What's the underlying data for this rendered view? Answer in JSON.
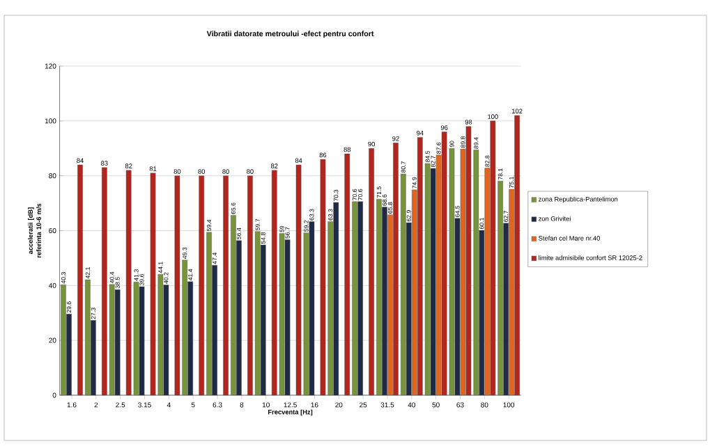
{
  "chart_data": {
    "type": "bar",
    "title": "Vibratii datorate metroului -efect  pentru confort",
    "xlabel": "Frecventa [Hz]",
    "ylabel": "acceleratii [dB] referinta 10-6 m/s",
    "categories": [
      "1.6",
      "2",
      "2.5",
      "3.15",
      "4",
      "5",
      "6.3",
      "8",
      "10",
      "12.5",
      "16",
      "20",
      "25",
      "31.5",
      "40",
      "50",
      "63",
      "80",
      "100"
    ],
    "series": [
      {
        "name": "zona Republica-Pantelimon",
        "color": "#77933c",
        "values": [
          40.3,
          42.1,
          40.4,
          41.3,
          44.1,
          49.3,
          59.4,
          65.6,
          59.7,
          59,
          59.2,
          63.3,
          70.6,
          71.5,
          80.7,
          84.5,
          90,
          89.4,
          78.1
        ]
      },
      {
        "name": "zon Grivitei",
        "color": "#1f2a44",
        "values": [
          29.6,
          27.3,
          38.5,
          39.6,
          40.2,
          41.4,
          47.4,
          56.4,
          54.8,
          56.7,
          63.3,
          70.3,
          70.6,
          68.6,
          62.9,
          82.7,
          64.5,
          60.1,
          62.7
        ]
      },
      {
        "name": "Stefan cel Mare nr.40",
        "color": "#e0661f",
        "values": [
          null,
          null,
          null,
          null,
          null,
          null,
          null,
          null,
          null,
          null,
          null,
          null,
          null,
          65.8,
          74.9,
          87.6,
          89.8,
          82.8,
          75.1
        ]
      },
      {
        "name": "limite admisibile confort SR 12025-2",
        "color": "#b3261e",
        "values": [
          84,
          83,
          82,
          81,
          80,
          80,
          80,
          80,
          82,
          84,
          86,
          88,
          90,
          92,
          94,
          96,
          98,
          100,
          102
        ]
      }
    ],
    "ylim": [
      0,
      120
    ],
    "yticks": [
      0,
      20,
      40,
      60,
      80,
      100,
      120
    ],
    "grid": "y",
    "legend": "right",
    "data_labels": true
  }
}
